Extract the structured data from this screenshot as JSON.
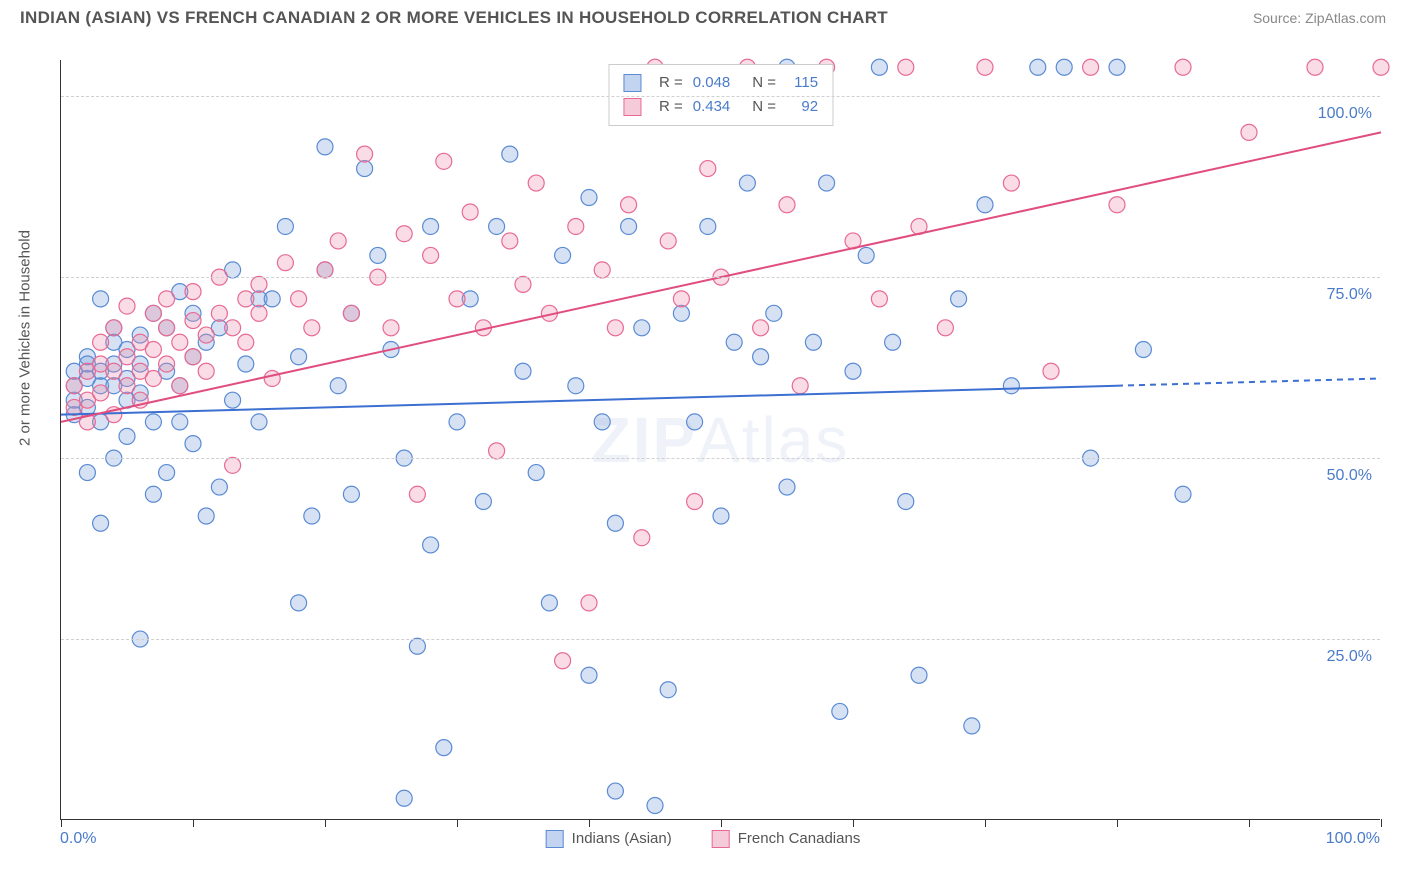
{
  "header": {
    "title": "INDIAN (ASIAN) VS FRENCH CANADIAN 2 OR MORE VEHICLES IN HOUSEHOLD CORRELATION CHART",
    "source": "Source: ZipAtlas.com"
  },
  "chart": {
    "type": "scatter",
    "ylabel": "2 or more Vehicles in Household",
    "xlim": [
      0,
      100
    ],
    "ylim": [
      0,
      105
    ],
    "xtick_step": 10,
    "yticks": [
      25,
      50,
      75,
      100
    ],
    "ytick_labels": [
      "25.0%",
      "50.0%",
      "75.0%",
      "100.0%"
    ],
    "xaxis_start_label": "0.0%",
    "xaxis_end_label": "100.0%",
    "background_color": "#ffffff",
    "grid_color": "#d0d0d0",
    "marker_radius": 8,
    "marker_stroke_width": 1.2,
    "series": [
      {
        "name": "Indians (Asian)",
        "fill": "rgba(120,160,220,0.30)",
        "stroke": "#5b8bd4",
        "R": "0.048",
        "N": "115",
        "trend": {
          "x1": 0,
          "y1": 56,
          "x2": 80,
          "y2": 60,
          "x2_dash": 100,
          "y2_dash": 61,
          "color": "#3b6fd1",
          "width": 2
        },
        "points": [
          [
            1,
            60
          ],
          [
            1,
            58
          ],
          [
            1,
            62
          ],
          [
            1,
            56
          ],
          [
            2,
            61
          ],
          [
            2,
            57
          ],
          [
            2,
            64
          ],
          [
            2,
            63
          ],
          [
            2,
            48
          ],
          [
            3,
            60
          ],
          [
            3,
            55
          ],
          [
            3,
            62
          ],
          [
            3,
            72
          ],
          [
            3,
            41
          ],
          [
            4,
            60
          ],
          [
            4,
            63
          ],
          [
            4,
            68
          ],
          [
            4,
            50
          ],
          [
            4,
            66
          ],
          [
            5,
            61
          ],
          [
            5,
            58
          ],
          [
            5,
            65
          ],
          [
            5,
            53
          ],
          [
            6,
            63
          ],
          [
            6,
            67
          ],
          [
            6,
            59
          ],
          [
            6,
            25
          ],
          [
            7,
            70
          ],
          [
            7,
            55
          ],
          [
            7,
            45
          ],
          [
            8,
            62
          ],
          [
            8,
            68
          ],
          [
            8,
            48
          ],
          [
            9,
            73
          ],
          [
            9,
            60
          ],
          [
            9,
            55
          ],
          [
            10,
            70
          ],
          [
            10,
            64
          ],
          [
            10,
            52
          ],
          [
            11,
            66
          ],
          [
            11,
            42
          ],
          [
            12,
            68
          ],
          [
            12,
            46
          ],
          [
            13,
            58
          ],
          [
            13,
            76
          ],
          [
            14,
            63
          ],
          [
            15,
            55
          ],
          [
            15,
            72
          ],
          [
            16,
            72
          ],
          [
            17,
            82
          ],
          [
            18,
            64
          ],
          [
            18,
            30
          ],
          [
            19,
            42
          ],
          [
            20,
            76
          ],
          [
            20,
            93
          ],
          [
            21,
            60
          ],
          [
            22,
            45
          ],
          [
            22,
            70
          ],
          [
            23,
            90
          ],
          [
            24,
            78
          ],
          [
            25,
            65
          ],
          [
            26,
            3
          ],
          [
            26,
            50
          ],
          [
            27,
            24
          ],
          [
            28,
            38
          ],
          [
            28,
            82
          ],
          [
            29,
            10
          ],
          [
            30,
            55
          ],
          [
            31,
            72
          ],
          [
            32,
            44
          ],
          [
            33,
            82
          ],
          [
            34,
            92
          ],
          [
            35,
            62
          ],
          [
            36,
            48
          ],
          [
            37,
            30
          ],
          [
            38,
            78
          ],
          [
            39,
            60
          ],
          [
            40,
            20
          ],
          [
            40,
            86
          ],
          [
            41,
            55
          ],
          [
            42,
            41
          ],
          [
            42,
            4
          ],
          [
            43,
            82
          ],
          [
            44,
            68
          ],
          [
            45,
            2
          ],
          [
            46,
            18
          ],
          [
            47,
            70
          ],
          [
            48,
            55
          ],
          [
            49,
            82
          ],
          [
            50,
            42
          ],
          [
            51,
            66
          ],
          [
            52,
            88
          ],
          [
            53,
            64
          ],
          [
            54,
            70
          ],
          [
            55,
            46
          ],
          [
            55,
            104
          ],
          [
            57,
            66
          ],
          [
            58,
            88
          ],
          [
            59,
            15
          ],
          [
            60,
            62
          ],
          [
            61,
            78
          ],
          [
            62,
            104
          ],
          [
            63,
            66
          ],
          [
            64,
            44
          ],
          [
            65,
            20
          ],
          [
            68,
            72
          ],
          [
            69,
            13
          ],
          [
            70,
            85
          ],
          [
            72,
            60
          ],
          [
            74,
            104
          ],
          [
            76,
            104
          ],
          [
            78,
            50
          ],
          [
            80,
            104
          ],
          [
            82,
            65
          ],
          [
            85,
            45
          ]
        ]
      },
      {
        "name": "French Canadians",
        "fill": "rgba(235,140,170,0.30)",
        "stroke": "#e86a94",
        "R": "0.434",
        "N": "92",
        "trend": {
          "x1": 0,
          "y1": 55,
          "x2": 100,
          "y2": 95,
          "color": "#e04d7e",
          "width": 2
        },
        "points": [
          [
            1,
            60
          ],
          [
            1,
            57
          ],
          [
            2,
            62
          ],
          [
            2,
            58
          ],
          [
            2,
            55
          ],
          [
            3,
            63
          ],
          [
            3,
            59
          ],
          [
            3,
            66
          ],
          [
            4,
            62
          ],
          [
            4,
            68
          ],
          [
            4,
            56
          ],
          [
            5,
            64
          ],
          [
            5,
            60
          ],
          [
            5,
            71
          ],
          [
            6,
            62
          ],
          [
            6,
            66
          ],
          [
            6,
            58
          ],
          [
            7,
            65
          ],
          [
            7,
            70
          ],
          [
            7,
            61
          ],
          [
            8,
            68
          ],
          [
            8,
            63
          ],
          [
            8,
            72
          ],
          [
            9,
            66
          ],
          [
            9,
            60
          ],
          [
            10,
            69
          ],
          [
            10,
            73
          ],
          [
            10,
            64
          ],
          [
            11,
            67
          ],
          [
            11,
            62
          ],
          [
            12,
            70
          ],
          [
            12,
            75
          ],
          [
            13,
            68
          ],
          [
            13,
            49
          ],
          [
            14,
            72
          ],
          [
            14,
            66
          ],
          [
            15,
            74
          ],
          [
            15,
            70
          ],
          [
            16,
            61
          ],
          [
            17,
            77
          ],
          [
            18,
            72
          ],
          [
            19,
            68
          ],
          [
            20,
            76
          ],
          [
            21,
            80
          ],
          [
            22,
            70
          ],
          [
            23,
            92
          ],
          [
            24,
            75
          ],
          [
            25,
            68
          ],
          [
            26,
            81
          ],
          [
            27,
            45
          ],
          [
            28,
            78
          ],
          [
            29,
            91
          ],
          [
            30,
            72
          ],
          [
            31,
            84
          ],
          [
            32,
            68
          ],
          [
            33,
            51
          ],
          [
            34,
            80
          ],
          [
            35,
            74
          ],
          [
            36,
            88
          ],
          [
            37,
            70
          ],
          [
            38,
            22
          ],
          [
            39,
            82
          ],
          [
            40,
            30
          ],
          [
            41,
            76
          ],
          [
            42,
            68
          ],
          [
            43,
            85
          ],
          [
            44,
            39
          ],
          [
            45,
            104
          ],
          [
            46,
            80
          ],
          [
            47,
            72
          ],
          [
            48,
            44
          ],
          [
            49,
            90
          ],
          [
            50,
            75
          ],
          [
            52,
            104
          ],
          [
            53,
            68
          ],
          [
            55,
            85
          ],
          [
            56,
            60
          ],
          [
            58,
            104
          ],
          [
            60,
            80
          ],
          [
            62,
            72
          ],
          [
            64,
            104
          ],
          [
            65,
            82
          ],
          [
            67,
            68
          ],
          [
            70,
            104
          ],
          [
            72,
            88
          ],
          [
            75,
            62
          ],
          [
            78,
            104
          ],
          [
            80,
            85
          ],
          [
            85,
            104
          ],
          [
            90,
            95
          ],
          [
            95,
            104
          ],
          [
            100,
            104
          ]
        ]
      }
    ]
  },
  "top_legend": {
    "rows": [
      {
        "swatch_fill": "rgba(120,160,220,0.45)",
        "swatch_stroke": "#5b8bd4",
        "r_label": "R =",
        "r_val": "0.048",
        "n_label": "N =",
        "n_val": "115"
      },
      {
        "swatch_fill": "rgba(235,140,170,0.45)",
        "swatch_stroke": "#e86a94",
        "r_label": "R =",
        "r_val": "0.434",
        "n_label": "N =",
        "n_val": "92"
      }
    ]
  },
  "bottom_legend": {
    "items": [
      {
        "swatch_fill": "rgba(120,160,220,0.45)",
        "swatch_stroke": "#5b8bd4",
        "label": "Indians (Asian)"
      },
      {
        "swatch_fill": "rgba(235,140,170,0.45)",
        "swatch_stroke": "#e86a94",
        "label": "French Canadians"
      }
    ]
  },
  "watermark": {
    "part1": "ZIP",
    "part2": "Atlas"
  }
}
